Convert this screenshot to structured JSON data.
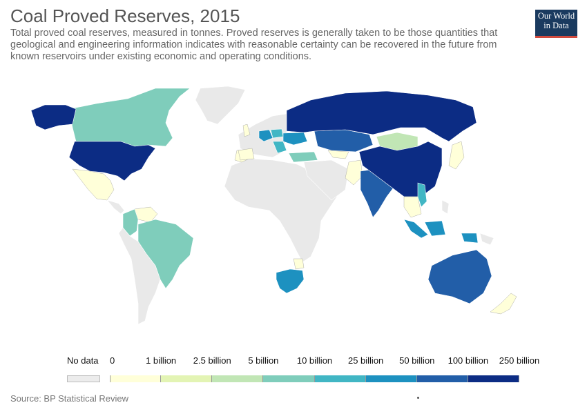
{
  "title": "Coal Proved Reserves, 2015",
  "subtitle": "Total proved coal reserves, measured in tonnes. Proved reserves is generally taken to be those quantities that geological and engineering information indicates with reasonable certainty can be recovered in the future from known reservoirs under existing economic and operating conditions.",
  "logo": {
    "line1": "Our World",
    "line2": "in Data",
    "bg": "#1a3a5f",
    "accent": "#d14a3e"
  },
  "source": "Source: BP Statistical Review",
  "legend": {
    "no_data_label": "No data",
    "no_data_color": "#ececec",
    "breaks": [
      "0",
      "1 billion",
      "2.5 billion",
      "5 billion",
      "10 billion",
      "25 billion",
      "50 billion",
      "100 billion",
      "250 billion"
    ],
    "colors": [
      "#ffffd9",
      "#e3f4b4",
      "#c1e6b5",
      "#7fcdbb",
      "#41b6c4",
      "#1d91c0",
      "#225ea8",
      "#0c2c84"
    ]
  },
  "map": {
    "ocean": "#ffffff",
    "land_no_data": "#e9e9e9",
    "border": "#ffffff"
  }
}
